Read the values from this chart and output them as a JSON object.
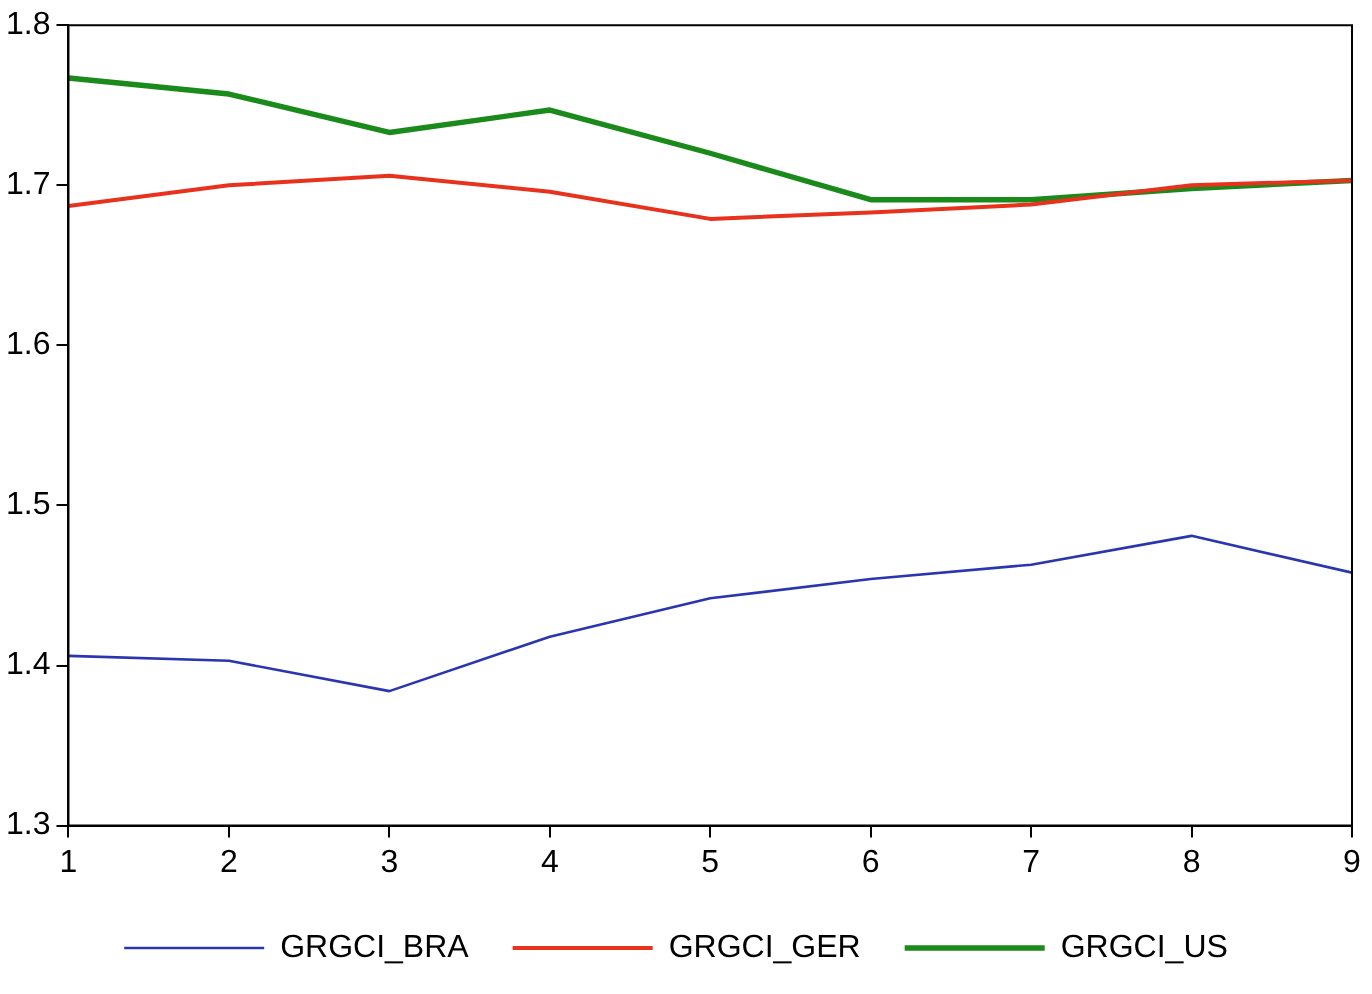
{
  "chart_data": {
    "type": "line",
    "x": [
      1,
      2,
      3,
      4,
      5,
      6,
      7,
      8,
      9
    ],
    "xlim": [
      1,
      9
    ],
    "xticks": [
      1,
      2,
      3,
      4,
      5,
      6,
      7,
      8,
      9
    ],
    "ylim": [
      1.3,
      1.8
    ],
    "yticks": [
      1.3,
      1.4,
      1.5,
      1.6,
      1.7,
      1.8
    ],
    "grid": false,
    "legend": "bottom",
    "marker": "none",
    "line_style": "solid",
    "series": [
      {
        "name": "GRGCI_BRA",
        "color": "#2a35b0",
        "values": [
          1.406,
          1.403,
          1.384,
          1.418,
          1.442,
          1.454,
          1.463,
          1.481,
          1.458
        ]
      },
      {
        "name": "GRGCI_GER",
        "color": "#e8321e",
        "values": [
          1.687,
          1.7,
          1.706,
          1.696,
          1.679,
          1.683,
          1.688,
          1.7,
          1.703
        ]
      },
      {
        "name": "GRGCI_US",
        "color": "#1a8a1a",
        "values": [
          1.767,
          1.757,
          1.733,
          1.747,
          1.72,
          1.691,
          1.691,
          1.698,
          1.703
        ]
      }
    ]
  }
}
